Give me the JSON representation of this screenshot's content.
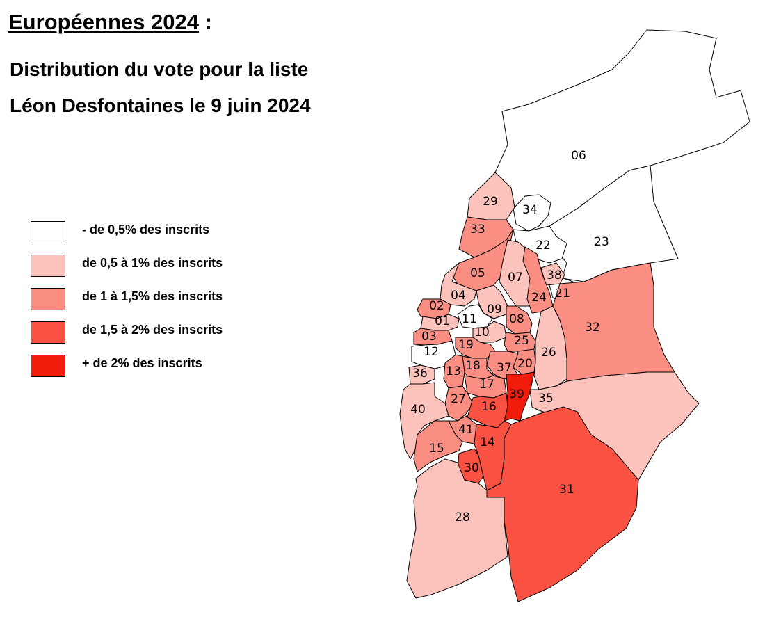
{
  "title": "Européennes 2024",
  "title_suffix": " :",
  "subtitle_line1": "Distribution du vote pour la liste",
  "subtitle_line2": "Léon Desfontaines le 9 juin 2024",
  "legend": [
    {
      "label": "- de 0,5% des inscrits",
      "color": "#ffffff"
    },
    {
      "label": "de 0,5 à 1% des inscrits",
      "color": "#fcc3bd"
    },
    {
      "label": "de 1 à 1,5% des inscrits",
      "color": "#fb8e82"
    },
    {
      "label": "de 1,5 à 2% des inscrits",
      "color": "#f95243"
    },
    {
      "label": "+ de 2% des inscrits",
      "color": "#f21c0c"
    }
  ],
  "districts": [
    {
      "id": "06",
      "cls": 0
    },
    {
      "id": "23",
      "cls": 0
    },
    {
      "id": "34",
      "cls": 0
    },
    {
      "id": "22",
      "cls": 0
    },
    {
      "id": "21",
      "cls": 0
    },
    {
      "id": "11",
      "cls": 0
    },
    {
      "id": "12",
      "cls": 0
    },
    {
      "id": "29",
      "cls": 1
    },
    {
      "id": "07",
      "cls": 1
    },
    {
      "id": "38",
      "cls": 1
    },
    {
      "id": "04",
      "cls": 1
    },
    {
      "id": "09",
      "cls": 1
    },
    {
      "id": "10",
      "cls": 1
    },
    {
      "id": "01",
      "cls": 1
    },
    {
      "id": "36",
      "cls": 1
    },
    {
      "id": "40",
      "cls": 1
    },
    {
      "id": "26",
      "cls": 1
    },
    {
      "id": "35",
      "cls": 1
    },
    {
      "id": "28",
      "cls": 1
    },
    {
      "id": "33",
      "cls": 2
    },
    {
      "id": "05",
      "cls": 2
    },
    {
      "id": "24",
      "cls": 2
    },
    {
      "id": "02",
      "cls": 2
    },
    {
      "id": "03",
      "cls": 2
    },
    {
      "id": "08",
      "cls": 2
    },
    {
      "id": "25",
      "cls": 2
    },
    {
      "id": "19",
      "cls": 2
    },
    {
      "id": "20",
      "cls": 2
    },
    {
      "id": "37",
      "cls": 2
    },
    {
      "id": "18",
      "cls": 2
    },
    {
      "id": "13",
      "cls": 2
    },
    {
      "id": "17",
      "cls": 2
    },
    {
      "id": "27",
      "cls": 2
    },
    {
      "id": "41",
      "cls": 2
    },
    {
      "id": "15",
      "cls": 2
    },
    {
      "id": "32",
      "cls": 2
    },
    {
      "id": "16",
      "cls": 3
    },
    {
      "id": "14",
      "cls": 3
    },
    {
      "id": "30",
      "cls": 3
    },
    {
      "id": "31",
      "cls": 3
    },
    {
      "id": "39",
      "cls": 4
    }
  ]
}
